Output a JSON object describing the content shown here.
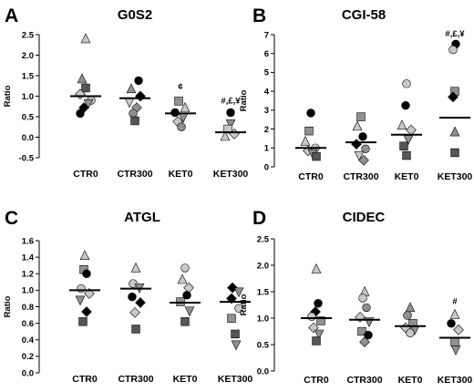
{
  "colors": {
    "black": "#000000",
    "dark_gray": "#555555",
    "mid_gray": "#909090",
    "light_gray": "#c8c8c8",
    "white": "#ffffff"
  },
  "chart_data": [
    {
      "panel": "A",
      "title": "G0S2",
      "type": "scatter",
      "ylabel": "Ratio",
      "ylim": [
        -0.5,
        2.5
      ],
      "yticks": [
        "-0.5",
        "0.0",
        "0.5",
        "1.0",
        "1.5",
        "2.0",
        "2.5"
      ],
      "categories": [
        "CTR0",
        "CTR300",
        "KET0",
        "KET300"
      ],
      "medians": [
        1.0,
        0.95,
        0.58,
        0.12
      ],
      "annotations": [
        {
          "category": "KET300",
          "y": 0.82,
          "text": "#,£,¥"
        }
      ],
      "points": [
        {
          "category": "CTR0",
          "y": 2.4,
          "shape": "triangle",
          "fill": "light_gray",
          "offset": 0
        },
        {
          "category": "CTR0",
          "y": 1.42,
          "shape": "triangle",
          "fill": "mid_gray",
          "offset": -4
        },
        {
          "category": "CTR0",
          "y": 1.2,
          "shape": "square",
          "fill": "dark_gray",
          "offset": 0
        },
        {
          "category": "CTR0",
          "y": 1.05,
          "shape": "diamond",
          "fill": "light_gray",
          "offset": -6
        },
        {
          "category": "CTR0",
          "y": 0.9,
          "shape": "circle",
          "fill": "light_gray",
          "offset": 6
        },
        {
          "category": "CTR0",
          "y": 0.82,
          "shape": "triangle_down",
          "fill": "mid_gray",
          "offset": 3
        },
        {
          "category": "CTR0",
          "y": 0.72,
          "shape": "diamond",
          "fill": "black",
          "offset": -2
        },
        {
          "category": "CTR0",
          "y": 0.58,
          "shape": "circle",
          "fill": "black",
          "offset": -6
        },
        {
          "category": "CTR300",
          "y": 1.38,
          "shape": "circle",
          "fill": "black",
          "offset": 4
        },
        {
          "category": "CTR300",
          "y": 1.18,
          "shape": "triangle",
          "fill": "mid_gray",
          "offset": -4
        },
        {
          "category": "CTR300",
          "y": 1.0,
          "shape": "diamond",
          "fill": "black",
          "offset": 6
        },
        {
          "category": "CTR300",
          "y": 0.85,
          "shape": "triangle_down",
          "fill": "light_gray",
          "offset": -6
        },
        {
          "category": "CTR300",
          "y": 0.72,
          "shape": "diamond",
          "fill": "mid_gray",
          "offset": 2
        },
        {
          "category": "CTR300",
          "y": 0.58,
          "shape": "circle",
          "fill": "mid_gray",
          "offset": -2
        },
        {
          "category": "CTR300",
          "y": 0.4,
          "shape": "square",
          "fill": "dark_gray",
          "offset": 0
        },
        {
          "category": "KET0",
          "y": 1.26,
          "shape": "glyph_c",
          "fill": "mid_gray",
          "offset": 0
        },
        {
          "category": "KET0",
          "y": 0.88,
          "shape": "square",
          "fill": "mid_gray",
          "offset": -2
        },
        {
          "category": "KET0",
          "y": 0.72,
          "shape": "triangle",
          "fill": "light_gray",
          "offset": 5
        },
        {
          "category": "KET0",
          "y": 0.6,
          "shape": "circle",
          "fill": "black",
          "offset": -6
        },
        {
          "category": "KET0",
          "y": 0.48,
          "shape": "triangle_down",
          "fill": "mid_gray",
          "offset": 3
        },
        {
          "category": "KET0",
          "y": 0.38,
          "shape": "diamond",
          "fill": "light_gray",
          "offset": -3
        },
        {
          "category": "KET0",
          "y": 0.25,
          "shape": "circle",
          "fill": "mid_gray",
          "offset": 1
        },
        {
          "category": "KET300",
          "y": 0.6,
          "shape": "circle",
          "fill": "black",
          "offset": 0
        },
        {
          "category": "KET300",
          "y": 0.33,
          "shape": "triangle_down",
          "fill": "mid_gray",
          "offset": 0
        },
        {
          "category": "KET300",
          "y": 0.2,
          "shape": "square",
          "fill": "light_gray",
          "offset": -3
        },
        {
          "category": "KET300",
          "y": 0.08,
          "shape": "diamond",
          "fill": "light_gray",
          "offset": 4
        },
        {
          "category": "KET300",
          "y": 0.02,
          "shape": "triangle",
          "fill": "light_gray",
          "offset": -6
        }
      ]
    },
    {
      "panel": "B",
      "title": "CGI-58",
      "type": "scatter",
      "ylabel": "Ratio",
      "ylim": [
        0,
        7
      ],
      "yticks": [
        "0",
        "1",
        "2",
        "3",
        "4",
        "5",
        "6",
        "7"
      ],
      "categories": [
        "CTR0",
        "CTR300",
        "KET0",
        "KET300"
      ],
      "medians": [
        1.0,
        1.3,
        1.7,
        2.6
      ],
      "annotations": [
        {
          "category": "KET300",
          "y": 6.9,
          "text": "#,£,¥"
        }
      ],
      "points": [
        {
          "category": "CTR0",
          "y": 2.85,
          "shape": "circle",
          "fill": "black",
          "offset": 0
        },
        {
          "category": "CTR0",
          "y": 1.9,
          "shape": "square",
          "fill": "mid_gray",
          "offset": -2
        },
        {
          "category": "CTR0",
          "y": 1.35,
          "shape": "triangle",
          "fill": "light_gray",
          "offset": -6
        },
        {
          "category": "CTR0",
          "y": 1.0,
          "shape": "circle",
          "fill": "light_gray",
          "offset": 5
        },
        {
          "category": "CTR0",
          "y": 0.85,
          "shape": "diamond",
          "fill": "light_gray",
          "offset": -3
        },
        {
          "category": "CTR0",
          "y": 0.7,
          "shape": "triangle_down",
          "fill": "mid_gray",
          "offset": 2
        },
        {
          "category": "CTR0",
          "y": 0.55,
          "shape": "square",
          "fill": "dark_gray",
          "offset": 6
        },
        {
          "category": "CTR300",
          "y": 2.65,
          "shape": "square",
          "fill": "mid_gray",
          "offset": 0
        },
        {
          "category": "CTR300",
          "y": 2.15,
          "shape": "triangle",
          "fill": "light_gray",
          "offset": -4
        },
        {
          "category": "CTR300",
          "y": 1.6,
          "shape": "circle",
          "fill": "black",
          "offset": 2
        },
        {
          "category": "CTR300",
          "y": 1.2,
          "shape": "diamond",
          "fill": "black",
          "offset": -5
        },
        {
          "category": "CTR300",
          "y": 0.95,
          "shape": "circle",
          "fill": "mid_gray",
          "offset": 5
        },
        {
          "category": "CTR300",
          "y": 0.6,
          "shape": "triangle_down",
          "fill": "light_gray",
          "offset": -2
        },
        {
          "category": "CTR300",
          "y": 0.35,
          "shape": "diamond",
          "fill": "mid_gray",
          "offset": 3
        },
        {
          "category": "KET0",
          "y": 4.4,
          "shape": "circle",
          "fill": "light_gray",
          "offset": 0
        },
        {
          "category": "KET0",
          "y": 3.25,
          "shape": "circle",
          "fill": "black",
          "offset": -1
        },
        {
          "category": "KET0",
          "y": 2.2,
          "shape": "triangle",
          "fill": "light_gray",
          "offset": -5
        },
        {
          "category": "KET0",
          "y": 1.95,
          "shape": "diamond",
          "fill": "light_gray",
          "offset": 5
        },
        {
          "category": "KET0",
          "y": 1.45,
          "shape": "triangle_down",
          "fill": "mid_gray",
          "offset": 2
        },
        {
          "category": "KET0",
          "y": 1.1,
          "shape": "square",
          "fill": "dark_gray",
          "offset": -3
        },
        {
          "category": "KET0",
          "y": 0.6,
          "shape": "square",
          "fill": "dark_gray",
          "offset": 0
        },
        {
          "category": "KET300",
          "y": 6.5,
          "shape": "circle",
          "fill": "black",
          "offset": 1
        },
        {
          "category": "KET300",
          "y": 6.2,
          "shape": "circle",
          "fill": "light_gray",
          "offset": -2
        },
        {
          "category": "KET300",
          "y": 4.0,
          "shape": "square",
          "fill": "mid_gray",
          "offset": 0
        },
        {
          "category": "KET300",
          "y": 3.7,
          "shape": "diamond",
          "fill": "black",
          "offset": -2
        },
        {
          "category": "KET300",
          "y": 1.85,
          "shape": "triangle",
          "fill": "mid_gray",
          "offset": 0
        },
        {
          "category": "KET300",
          "y": 0.75,
          "shape": "square",
          "fill": "dark_gray",
          "offset": 0
        }
      ]
    },
    {
      "panel": "C",
      "title": "ATGL",
      "type": "scatter",
      "ylabel": "Ratio",
      "ylim": [
        0,
        1.6
      ],
      "yticks": [
        "0.0",
        "0.2",
        "0.4",
        "0.6",
        "0.8",
        "1.0",
        "1.2",
        "1.4",
        "1.6"
      ],
      "categories": [
        "CTR0",
        "CTR300",
        "KET0",
        "KET300"
      ],
      "medians": [
        1.0,
        1.02,
        0.85,
        0.86
      ],
      "annotations": [],
      "points": [
        {
          "category": "CTR0",
          "y": 1.42,
          "shape": "triangle",
          "fill": "light_gray",
          "offset": 0
        },
        {
          "category": "CTR0",
          "y": 1.25,
          "shape": "square",
          "fill": "mid_gray",
          "offset": -1
        },
        {
          "category": "CTR0",
          "y": 1.2,
          "shape": "circle",
          "fill": "black",
          "offset": 2
        },
        {
          "category": "CTR0",
          "y": 1.02,
          "shape": "circle",
          "fill": "light_gray",
          "offset": -4
        },
        {
          "category": "CTR0",
          "y": 0.96,
          "shape": "diamond",
          "fill": "light_gray",
          "offset": 5
        },
        {
          "category": "CTR0",
          "y": 0.88,
          "shape": "triangle_down",
          "fill": "mid_gray",
          "offset": -5
        },
        {
          "category": "CTR0",
          "y": 0.74,
          "shape": "diamond",
          "fill": "black",
          "offset": 2
        },
        {
          "category": "CTR0",
          "y": 0.62,
          "shape": "square",
          "fill": "dark_gray",
          "offset": -2
        },
        {
          "category": "CTR300",
          "y": 1.27,
          "shape": "triangle",
          "fill": "light_gray",
          "offset": 0
        },
        {
          "category": "CTR300",
          "y": 1.08,
          "shape": "circle",
          "fill": "light_gray",
          "offset": -3
        },
        {
          "category": "CTR300",
          "y": 1.03,
          "shape": "triangle_down",
          "fill": "mid_gray",
          "offset": 4
        },
        {
          "category": "CTR300",
          "y": 0.92,
          "shape": "circle",
          "fill": "black",
          "offset": -4
        },
        {
          "category": "CTR300",
          "y": 0.85,
          "shape": "diamond",
          "fill": "black",
          "offset": 5
        },
        {
          "category": "CTR300",
          "y": 0.73,
          "shape": "diamond",
          "fill": "light_gray",
          "offset": -1
        },
        {
          "category": "CTR300",
          "y": 0.53,
          "shape": "square",
          "fill": "dark_gray",
          "offset": 0
        },
        {
          "category": "KET0",
          "y": 1.27,
          "shape": "circle",
          "fill": "light_gray",
          "offset": 0
        },
        {
          "category": "KET0",
          "y": 1.13,
          "shape": "triangle",
          "fill": "light_gray",
          "offset": -3
        },
        {
          "category": "KET0",
          "y": 1.03,
          "shape": "diamond",
          "fill": "light_gray",
          "offset": 4
        },
        {
          "category": "KET0",
          "y": 0.94,
          "shape": "circle",
          "fill": "black",
          "offset": 2
        },
        {
          "category": "KET0",
          "y": 0.86,
          "shape": "square",
          "fill": "mid_gray",
          "offset": -5
        },
        {
          "category": "KET0",
          "y": 0.75,
          "shape": "triangle_down",
          "fill": "mid_gray",
          "offset": 5
        },
        {
          "category": "KET0",
          "y": 0.62,
          "shape": "square",
          "fill": "dark_gray",
          "offset": 0
        },
        {
          "category": "KET300",
          "y": 1.03,
          "shape": "diamond",
          "fill": "black",
          "offset": -3
        },
        {
          "category": "KET300",
          "y": 0.98,
          "shape": "triangle_down",
          "fill": "mid_gray",
          "offset": 4
        },
        {
          "category": "KET300",
          "y": 0.9,
          "shape": "diamond",
          "fill": "black",
          "offset": -4
        },
        {
          "category": "KET300",
          "y": 0.78,
          "shape": "circle",
          "fill": "light_gray",
          "offset": 4
        },
        {
          "category": "KET300",
          "y": 0.66,
          "shape": "square",
          "fill": "mid_gray",
          "offset": -4
        },
        {
          "category": "KET300",
          "y": 0.47,
          "shape": "square",
          "fill": "dark_gray",
          "offset": 0
        },
        {
          "category": "KET300",
          "y": 0.34,
          "shape": "triangle_down",
          "fill": "mid_gray",
          "offset": 1
        }
      ]
    },
    {
      "panel": "D",
      "title": "CIDEC",
      "type": "scatter",
      "ylabel": "Ratio",
      "ylim": [
        0,
        2.5
      ],
      "yticks": [
        "0.0",
        "0.5",
        "1.0",
        "1.5",
        "2.0",
        "2.5"
      ],
      "categories": [
        "CTR0",
        "CTR300",
        "KET0",
        "KET300"
      ],
      "medians": [
        1.0,
        0.97,
        0.85,
        0.63
      ],
      "annotations": [
        {
          "category": "KET300",
          "y": 1.27,
          "text": "#"
        }
      ],
      "points": [
        {
          "category": "CTR0",
          "y": 1.93,
          "shape": "triangle",
          "fill": "light_gray",
          "offset": 0
        },
        {
          "category": "CTR0",
          "y": 1.28,
          "shape": "circle",
          "fill": "black",
          "offset": 2
        },
        {
          "category": "CTR0",
          "y": 1.12,
          "shape": "diamond",
          "fill": "black",
          "offset": -1
        },
        {
          "category": "CTR0",
          "y": 1.03,
          "shape": "circle",
          "fill": "light_gray",
          "offset": -5
        },
        {
          "category": "CTR0",
          "y": 0.95,
          "shape": "square",
          "fill": "mid_gray",
          "offset": 5
        },
        {
          "category": "CTR0",
          "y": 0.82,
          "shape": "diamond",
          "fill": "light_gray",
          "offset": -3
        },
        {
          "category": "CTR0",
          "y": 0.7,
          "shape": "triangle_down",
          "fill": "mid_gray",
          "offset": 3
        },
        {
          "category": "CTR0",
          "y": 0.57,
          "shape": "square",
          "fill": "dark_gray",
          "offset": 0
        },
        {
          "category": "CTR300",
          "y": 1.5,
          "shape": "triangle",
          "fill": "light_gray",
          "offset": 0
        },
        {
          "category": "CTR300",
          "y": 1.38,
          "shape": "circle",
          "fill": "light_gray",
          "offset": -2
        },
        {
          "category": "CTR300",
          "y": 1.2,
          "shape": "circle",
          "fill": "mid_gray",
          "offset": 2
        },
        {
          "category": "CTR300",
          "y": 1.02,
          "shape": "diamond",
          "fill": "light_gray",
          "offset": -5
        },
        {
          "category": "CTR300",
          "y": 0.93,
          "shape": "triangle_down",
          "fill": "mid_gray",
          "offset": 5
        },
        {
          "category": "CTR300",
          "y": 0.75,
          "shape": "square",
          "fill": "mid_gray",
          "offset": -3
        },
        {
          "category": "CTR300",
          "y": 0.68,
          "shape": "circle",
          "fill": "black",
          "offset": 4
        },
        {
          "category": "CTR300",
          "y": 0.55,
          "shape": "diamond",
          "fill": "mid_gray",
          "offset": 0
        },
        {
          "category": "KET0",
          "y": 1.2,
          "shape": "triangle",
          "fill": "mid_gray",
          "offset": 0
        },
        {
          "category": "KET0",
          "y": 1.05,
          "shape": "circle",
          "fill": "mid_gray",
          "offset": -3
        },
        {
          "category": "KET0",
          "y": 0.9,
          "shape": "square",
          "fill": "mid_gray",
          "offset": 3
        },
        {
          "category": "KET0",
          "y": 0.82,
          "shape": "diamond",
          "fill": "light_gray",
          "offset": -5
        },
        {
          "category": "KET0",
          "y": 0.78,
          "shape": "triangle_down",
          "fill": "mid_gray",
          "offset": 5
        },
        {
          "category": "KET0",
          "y": 0.72,
          "shape": "circle",
          "fill": "light_gray",
          "offset": 0
        },
        {
          "category": "KET300",
          "y": 1.07,
          "shape": "triangle",
          "fill": "light_gray",
          "offset": 0
        },
        {
          "category": "KET300",
          "y": 0.9,
          "shape": "circle",
          "fill": "black",
          "offset": -4
        },
        {
          "category": "KET300",
          "y": 0.78,
          "shape": "diamond",
          "fill": "light_gray",
          "offset": 4
        },
        {
          "category": "KET300",
          "y": 0.55,
          "shape": "square",
          "fill": "mid_gray",
          "offset": 0
        },
        {
          "category": "KET300",
          "y": 0.4,
          "shape": "triangle_down",
          "fill": "mid_gray",
          "offset": 1
        }
      ]
    }
  ]
}
